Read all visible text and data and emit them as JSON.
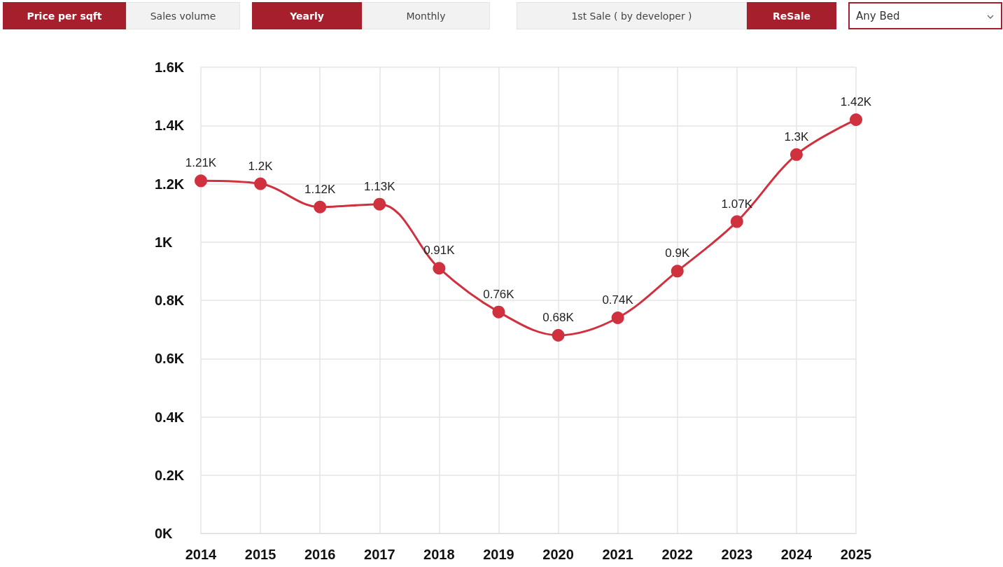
{
  "chart_data": {
    "type": "line",
    "categories": [
      "2014",
      "2015",
      "2016",
      "2017",
      "2018",
      "2019",
      "2020",
      "2021",
      "2022",
      "2023",
      "2024",
      "2025"
    ],
    "series": [
      {
        "color": "#d0313f",
        "values": [
          1210,
          1200,
          1120,
          1130,
          910,
          760,
          680,
          740,
          900,
          1070,
          1300,
          1420
        ],
        "value_labels": [
          "1.21K",
          "1.2K",
          "1.12K",
          "1.13K",
          "0.91K",
          "0.76K",
          "0.68K",
          "0.74K",
          "0.9K",
          "1.07K",
          "1.3K",
          "1.42K"
        ]
      }
    ],
    "ylim": [
      0,
      1600
    ],
    "yticks": [
      {
        "value": 0,
        "label": "0K"
      },
      {
        "value": 200,
        "label": "0.2K"
      },
      {
        "value": 400,
        "label": "0.4K"
      },
      {
        "value": 600,
        "label": "0.6K"
      },
      {
        "value": 800,
        "label": "0.8K"
      },
      {
        "value": 1000,
        "label": "1K"
      },
      {
        "value": 1200,
        "label": "1.2K"
      },
      {
        "value": 1400,
        "label": "1.4K"
      },
      {
        "value": 1600,
        "label": "1.6K"
      }
    ],
    "grid": true,
    "marker": "circle",
    "line_style": "solid",
    "annotations": [
      "Price per sqft",
      "Sales volume",
      "Yearly",
      "Monthly",
      "1st Sale ( by developer )",
      "ReSale",
      "Any Bed"
    ]
  }
}
